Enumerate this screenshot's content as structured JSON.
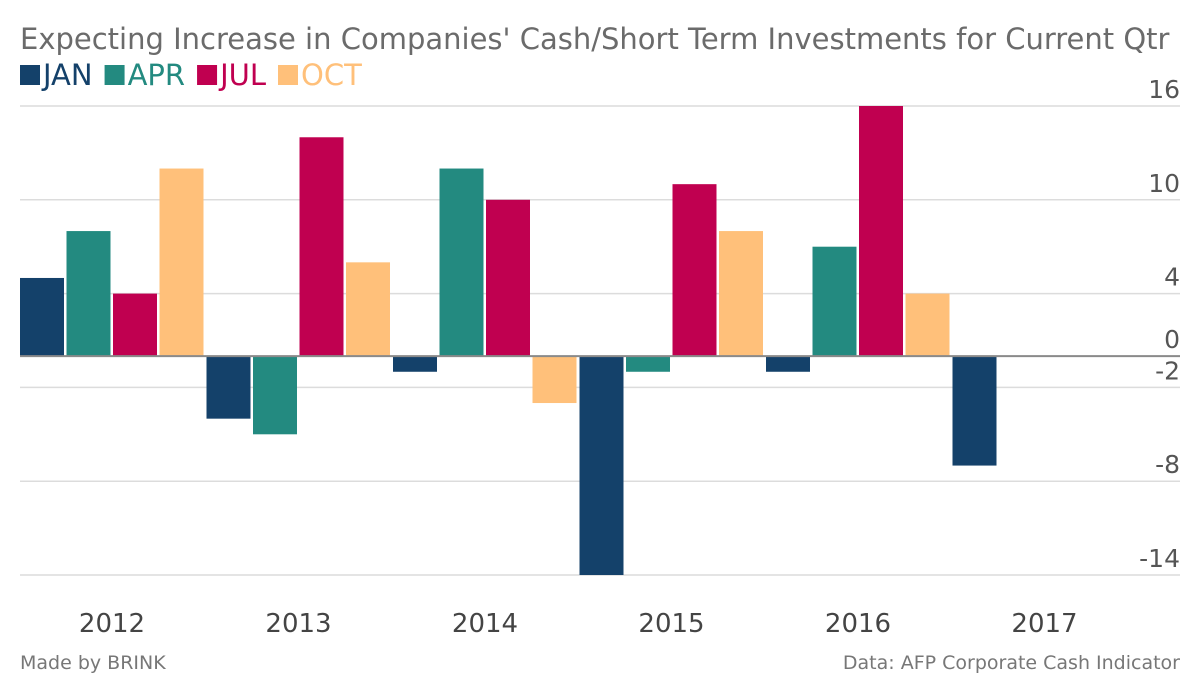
{
  "chart_data": {
    "type": "bar",
    "title": "Expecting Increase in Companies' Cash/Short Term Investments for Current Qtr",
    "categories": [
      "2012",
      "2013",
      "2014",
      "2015",
      "2016",
      "2017"
    ],
    "series": [
      {
        "name": "JAN",
        "color": "#14416a",
        "values": [
          5,
          -4,
          -1,
          -14,
          -1,
          -7
        ]
      },
      {
        "name": "APR",
        "color": "#238a80",
        "values": [
          8,
          -5,
          12,
          -1,
          7,
          null
        ]
      },
      {
        "name": "JUL",
        "color": "#c00050",
        "values": [
          4,
          14,
          10,
          11,
          16,
          null
        ]
      },
      {
        "name": "OCT",
        "color": "#ffc07a",
        "values": [
          12,
          6,
          -3,
          8,
          4,
          null
        ]
      }
    ],
    "y_ticks": [
      "16",
      "10",
      "4",
      "0",
      "-2",
      "-8",
      "-14"
    ],
    "y_tick_values": [
      16,
      10,
      4,
      0,
      -2,
      -8,
      -14
    ],
    "ylim": [
      -14,
      16
    ],
    "legend_position": "top-left",
    "grid": true
  },
  "footer": {
    "left": "Made by BRINK",
    "right": "Data: AFP Corporate Cash Indicator"
  }
}
